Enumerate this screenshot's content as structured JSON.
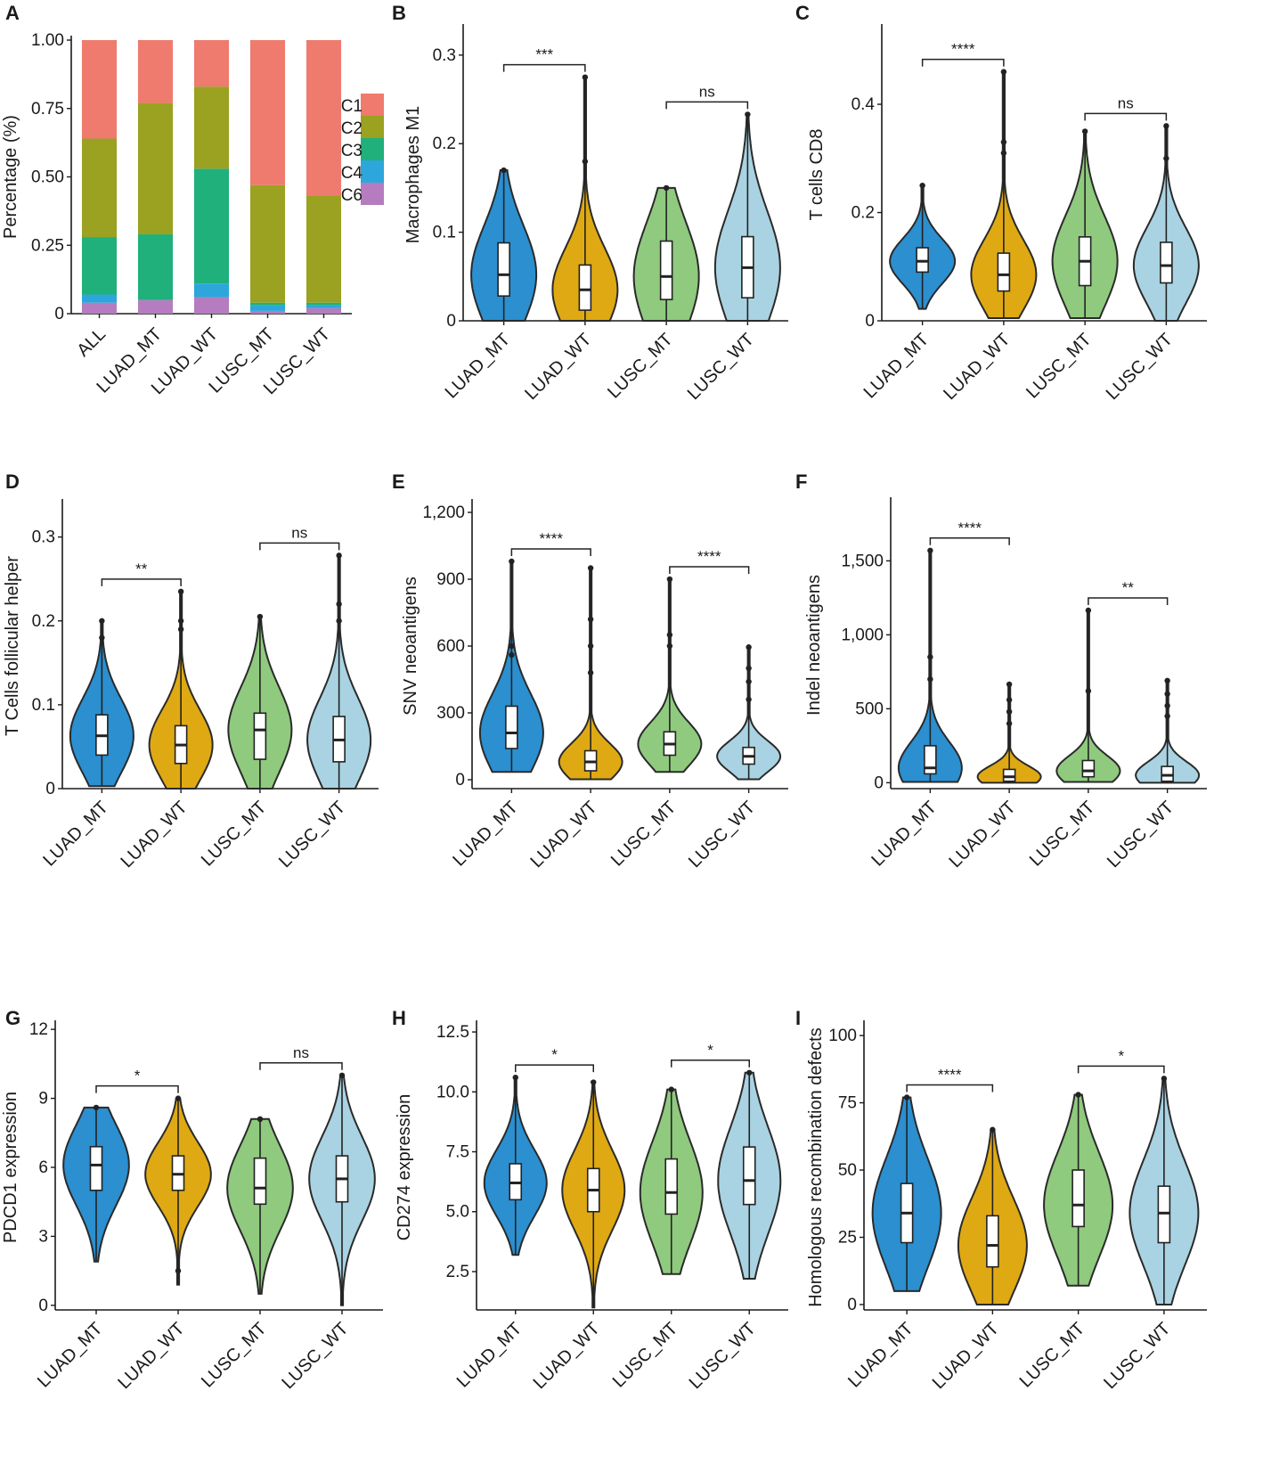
{
  "chart_data": [
    {
      "id": "A",
      "type": "bar",
      "stacked": true,
      "title": "",
      "xlabel": "",
      "ylabel": "Percentage (%)",
      "ylim": [
        0,
        1
      ],
      "yticks": [
        0,
        0.25,
        0.5,
        0.75,
        1.0
      ],
      "ytick_labels": [
        "0",
        "0.25",
        "0.50",
        "0.75",
        "1.00"
      ],
      "categories": [
        "ALL",
        "LUAD_MT",
        "LUAD_WT",
        "LUSC_MT",
        "LUSC_WT"
      ],
      "series": [
        {
          "name": "C6",
          "color": "#b57cbf",
          "values": [
            0.04,
            0.05,
            0.06,
            0.01,
            0.02
          ]
        },
        {
          "name": "C4",
          "color": "#2da6dc",
          "values": [
            0.03,
            0.0,
            0.05,
            0.02,
            0.01
          ]
        },
        {
          "name": "C3",
          "color": "#1fb07c",
          "values": [
            0.21,
            0.24,
            0.42,
            0.01,
            0.01
          ]
        },
        {
          "name": "C2",
          "color": "#9ba120",
          "values": [
            0.36,
            0.48,
            0.3,
            0.43,
            0.39
          ]
        },
        {
          "name": "C1",
          "color": "#ef7a6e",
          "values": [
            0.36,
            0.23,
            0.17,
            0.53,
            0.57
          ]
        }
      ],
      "legend": [
        "C1",
        "C2",
        "C3",
        "C4",
        "C6"
      ]
    },
    {
      "id": "B",
      "type": "violin",
      "title": "",
      "xlabel": "",
      "ylabel": "Macrophages M1",
      "ylim": [
        0,
        0.33
      ],
      "yticks": [
        0,
        0.1,
        0.2,
        0.3
      ],
      "ytick_labels": [
        "0",
        "0.1",
        "0.2",
        "0.3"
      ],
      "categories": [
        "LUAD_MT",
        "LUAD_WT",
        "LUSC_MT",
        "LUSC_WT"
      ],
      "series": [
        {
          "name": "LUAD_MT",
          "color": "#2b8fd0",
          "min": 0,
          "q1": 0.028,
          "median": 0.052,
          "q3": 0.088,
          "max": 0.17,
          "outliers": []
        },
        {
          "name": "LUAD_WT",
          "color": "#dfa914",
          "min": 0,
          "q1": 0.012,
          "median": 0.035,
          "q3": 0.063,
          "max": 0.275,
          "outliers": [
            0.18
          ]
        },
        {
          "name": "LUSC_MT",
          "color": "#8fca7e",
          "min": 0,
          "q1": 0.024,
          "median": 0.05,
          "q3": 0.09,
          "max": 0.15,
          "outliers": []
        },
        {
          "name": "LUSC_WT",
          "color": "#a9d3e2",
          "min": 0,
          "q1": 0.026,
          "median": 0.06,
          "q3": 0.095,
          "max": 0.233,
          "outliers": []
        }
      ],
      "comparisons": [
        {
          "groups": [
            "LUAD_MT",
            "LUAD_WT"
          ],
          "label": "***"
        },
        {
          "groups": [
            "LUSC_MT",
            "LUSC_WT"
          ],
          "label": "ns"
        }
      ]
    },
    {
      "id": "C",
      "type": "violin",
      "title": "",
      "xlabel": "",
      "ylabel": "T cells CD8",
      "ylim": [
        0,
        0.54
      ],
      "yticks": [
        0,
        0.2,
        0.4
      ],
      "ytick_labels": [
        "0",
        "0.2",
        "0.4"
      ],
      "categories": [
        "LUAD_MT",
        "LUAD_WT",
        "LUSC_MT",
        "LUSC_WT"
      ],
      "series": [
        {
          "name": "LUAD_MT",
          "color": "#2b8fd0",
          "min": 0.022,
          "q1": 0.09,
          "median": 0.11,
          "q3": 0.135,
          "max": 0.25,
          "outliers": []
        },
        {
          "name": "LUAD_WT",
          "color": "#dfa914",
          "min": 0.005,
          "q1": 0.055,
          "median": 0.085,
          "q3": 0.125,
          "max": 0.46,
          "outliers": [
            0.33,
            0.31
          ]
        },
        {
          "name": "LUSC_MT",
          "color": "#8fca7e",
          "min": 0.005,
          "q1": 0.065,
          "median": 0.11,
          "q3": 0.155,
          "max": 0.35,
          "outliers": []
        },
        {
          "name": "LUSC_WT",
          "color": "#a9d3e2",
          "min": 0,
          "q1": 0.07,
          "median": 0.102,
          "q3": 0.145,
          "max": 0.36,
          "outliers": [
            0.3
          ]
        }
      ],
      "comparisons": [
        {
          "groups": [
            "LUAD_MT",
            "LUAD_WT"
          ],
          "label": "****"
        },
        {
          "groups": [
            "LUSC_MT",
            "LUSC_WT"
          ],
          "label": "ns"
        }
      ]
    },
    {
      "id": "D",
      "type": "violin",
      "title": "",
      "xlabel": "",
      "ylabel": "T Cells follicular helper",
      "ylim": [
        0,
        0.34
      ],
      "yticks": [
        0,
        0.1,
        0.2,
        0.3
      ],
      "ytick_labels": [
        "0",
        "0.1",
        "0.2",
        "0.3"
      ],
      "categories": [
        "LUAD_MT",
        "LUAD_WT",
        "LUSC_MT",
        "LUSC_WT"
      ],
      "series": [
        {
          "name": "LUAD_MT",
          "color": "#2b8fd0",
          "min": 0.003,
          "q1": 0.04,
          "median": 0.063,
          "q3": 0.088,
          "max": 0.2,
          "outliers": [
            0.18
          ]
        },
        {
          "name": "LUAD_WT",
          "color": "#dfa914",
          "min": 0,
          "q1": 0.03,
          "median": 0.052,
          "q3": 0.075,
          "max": 0.235,
          "outliers": [
            0.2,
            0.19
          ]
        },
        {
          "name": "LUSC_MT",
          "color": "#8fca7e",
          "min": 0,
          "q1": 0.035,
          "median": 0.07,
          "q3": 0.09,
          "max": 0.205,
          "outliers": []
        },
        {
          "name": "LUSC_WT",
          "color": "#a9d3e2",
          "min": 0,
          "q1": 0.032,
          "median": 0.058,
          "q3": 0.086,
          "max": 0.278,
          "outliers": [
            0.22,
            0.2
          ]
        }
      ],
      "comparisons": [
        {
          "groups": [
            "LUAD_MT",
            "LUAD_WT"
          ],
          "label": "**"
        },
        {
          "groups": [
            "LUSC_MT",
            "LUSC_WT"
          ],
          "label": "ns"
        }
      ]
    },
    {
      "id": "E",
      "type": "violin",
      "title": "",
      "xlabel": "",
      "ylabel": "SNV neoantigens",
      "ylim": [
        -40,
        1240
      ],
      "yticks": [
        0,
        300,
        600,
        900,
        1200
      ],
      "ytick_labels": [
        "0",
        "300",
        "600",
        "900",
        "1,200"
      ],
      "categories": [
        "LUAD_MT",
        "LUAD_WT",
        "LUSC_MT",
        "LUSC_WT"
      ],
      "series": [
        {
          "name": "LUAD_MT",
          "color": "#2b8fd0",
          "min": 35,
          "q1": 140,
          "median": 210,
          "q3": 330,
          "max": 980,
          "outliers": [
            600,
            560
          ]
        },
        {
          "name": "LUAD_WT",
          "color": "#dfa914",
          "min": 2,
          "q1": 40,
          "median": 80,
          "q3": 130,
          "max": 950,
          "outliers": [
            720,
            600,
            480
          ]
        },
        {
          "name": "LUSC_MT",
          "color": "#8fca7e",
          "min": 35,
          "q1": 110,
          "median": 160,
          "q3": 215,
          "max": 900,
          "outliers": [
            650,
            600
          ]
        },
        {
          "name": "LUSC_WT",
          "color": "#a9d3e2",
          "min": 2,
          "q1": 70,
          "median": 105,
          "q3": 145,
          "max": 595,
          "outliers": [
            500,
            440,
            360
          ]
        }
      ],
      "comparisons": [
        {
          "groups": [
            "LUAD_MT",
            "LUAD_WT"
          ],
          "label": "****"
        },
        {
          "groups": [
            "LUSC_MT",
            "LUSC_WT"
          ],
          "label": "****"
        }
      ]
    },
    {
      "id": "F",
      "type": "violin",
      "title": "",
      "xlabel": "",
      "ylabel": "Indel neoantigens",
      "ylim": [
        -40,
        1900
      ],
      "yticks": [
        0,
        500,
        1000,
        1500
      ],
      "ytick_labels": [
        "0",
        "500",
        "1,000",
        "1,500"
      ],
      "categories": [
        "LUAD_MT",
        "LUAD_WT",
        "LUSC_MT",
        "LUSC_WT"
      ],
      "series": [
        {
          "name": "LUAD_MT",
          "color": "#2b8fd0",
          "min": 5,
          "q1": 60,
          "median": 100,
          "q3": 250,
          "max": 1570,
          "outliers": [
            850,
            700
          ]
        },
        {
          "name": "LUAD_WT",
          "color": "#dfa914",
          "min": 0,
          "q1": 10,
          "median": 40,
          "q3": 90,
          "max": 665,
          "outliers": [
            560,
            480,
            400
          ]
        },
        {
          "name": "LUSC_MT",
          "color": "#8fca7e",
          "min": 5,
          "q1": 40,
          "median": 80,
          "q3": 150,
          "max": 1165,
          "outliers": [
            620
          ]
        },
        {
          "name": "LUSC_WT",
          "color": "#a9d3e2",
          "min": 0,
          "q1": 10,
          "median": 50,
          "q3": 110,
          "max": 690,
          "outliers": [
            600,
            520,
            450
          ]
        }
      ],
      "comparisons": [
        {
          "groups": [
            "LUAD_MT",
            "LUAD_WT"
          ],
          "label": "****"
        },
        {
          "groups": [
            "LUSC_MT",
            "LUSC_WT"
          ],
          "label": "**"
        }
      ]
    },
    {
      "id": "G",
      "type": "violin",
      "title": "",
      "xlabel": "",
      "ylabel": "PDCD1 expression",
      "ylim": [
        -0.2,
        12.2
      ],
      "yticks": [
        0,
        3,
        6,
        9,
        12
      ],
      "ytick_labels": [
        "0",
        "3",
        "6",
        "9",
        "12"
      ],
      "categories": [
        "LUAD_MT",
        "LUAD_WT",
        "LUSC_MT",
        "LUSC_WT"
      ],
      "series": [
        {
          "name": "LUAD_MT",
          "color": "#2b8fd0",
          "min": 1.9,
          "q1": 5.0,
          "median": 6.1,
          "q3": 6.9,
          "max": 8.6,
          "outliers": []
        },
        {
          "name": "LUAD_WT",
          "color": "#dfa914",
          "min": 0.9,
          "q1": 5.0,
          "median": 5.7,
          "q3": 6.5,
          "max": 9.0,
          "outliers": [
            1.5
          ]
        },
        {
          "name": "LUSC_MT",
          "color": "#8fca7e",
          "min": 0.5,
          "q1": 4.4,
          "median": 5.1,
          "q3": 6.4,
          "max": 8.1,
          "outliers": []
        },
        {
          "name": "LUSC_WT",
          "color": "#a9d3e2",
          "min": 0.0,
          "q1": 4.5,
          "median": 5.5,
          "q3": 6.5,
          "max": 10.0,
          "outliers": []
        }
      ],
      "comparisons": [
        {
          "groups": [
            "LUAD_MT",
            "LUAD_WT"
          ],
          "label": "*"
        },
        {
          "groups": [
            "LUSC_MT",
            "LUSC_WT"
          ],
          "label": "ns"
        }
      ]
    },
    {
      "id": "H",
      "type": "violin",
      "title": "",
      "xlabel": "",
      "ylabel": "CD274 expression",
      "ylim": [
        0.9,
        12.8
      ],
      "yticks": [
        2.5,
        5.0,
        7.5,
        10.0,
        12.5
      ],
      "ytick_labels": [
        "2.5",
        "5.0",
        "7.5",
        "10.0",
        "12.5"
      ],
      "categories": [
        "LUAD_MT",
        "LUAD_WT",
        "LUSC_MT",
        "LUSC_WT"
      ],
      "series": [
        {
          "name": "LUAD_MT",
          "color": "#2b8fd0",
          "min": 3.2,
          "q1": 5.5,
          "median": 6.2,
          "q3": 7.0,
          "max": 10.6,
          "outliers": []
        },
        {
          "name": "LUAD_WT",
          "color": "#dfa914",
          "min": 1.0,
          "q1": 5.0,
          "median": 5.9,
          "q3": 6.8,
          "max": 10.4,
          "outliers": []
        },
        {
          "name": "LUSC_MT",
          "color": "#8fca7e",
          "min": 2.4,
          "q1": 4.9,
          "median": 5.8,
          "q3": 7.2,
          "max": 10.1,
          "outliers": []
        },
        {
          "name": "LUSC_WT",
          "color": "#a9d3e2",
          "min": 2.2,
          "q1": 5.3,
          "median": 6.3,
          "q3": 7.7,
          "max": 10.8,
          "outliers": []
        }
      ],
      "comparisons": [
        {
          "groups": [
            "LUAD_MT",
            "LUAD_WT"
          ],
          "label": "*"
        },
        {
          "groups": [
            "LUSC_MT",
            "LUSC_WT"
          ],
          "label": "*"
        }
      ]
    },
    {
      "id": "I",
      "type": "violin",
      "title": "",
      "xlabel": "",
      "ylabel": "Homologous recombination defects",
      "ylim": [
        -2,
        104
      ],
      "yticks": [
        0,
        25,
        50,
        75,
        100
      ],
      "ytick_labels": [
        "0",
        "25",
        "50",
        "75",
        "100"
      ],
      "categories": [
        "LUAD_MT",
        "LUAD_WT",
        "LUSC_MT",
        "LUSC_WT"
      ],
      "series": [
        {
          "name": "LUAD_MT",
          "color": "#2b8fd0",
          "min": 5,
          "q1": 23,
          "median": 34,
          "q3": 45,
          "max": 77,
          "outliers": []
        },
        {
          "name": "LUAD_WT",
          "color": "#dfa914",
          "min": 0,
          "q1": 14,
          "median": 22,
          "q3": 33,
          "max": 65,
          "outliers": []
        },
        {
          "name": "LUSC_MT",
          "color": "#8fca7e",
          "min": 7,
          "q1": 29,
          "median": 37,
          "q3": 50,
          "max": 78,
          "outliers": []
        },
        {
          "name": "LUSC_WT",
          "color": "#a9d3e2",
          "min": 0,
          "q1": 23,
          "median": 34,
          "q3": 44,
          "max": 84,
          "outliers": []
        }
      ],
      "comparisons": [
        {
          "groups": [
            "LUAD_MT",
            "LUAD_WT"
          ],
          "label": "****"
        },
        {
          "groups": [
            "LUSC_MT",
            "LUSC_WT"
          ],
          "label": "*"
        }
      ]
    }
  ]
}
